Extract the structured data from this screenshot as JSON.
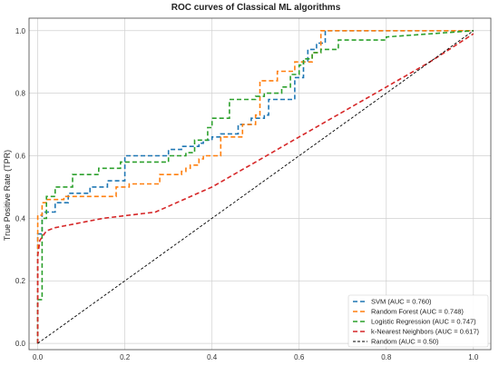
{
  "chart_data": {
    "type": "line",
    "title": "ROC curves of Classical ML algorithms",
    "xlabel": "",
    "ylabel": "True Positive Rate (TPR)",
    "xlim": [
      -0.02,
      1.04
    ],
    "ylim": [
      -0.02,
      1.04
    ],
    "xticks": [
      "0.0",
      "0.2",
      "0.4",
      "0.6",
      "0.8",
      "1.0"
    ],
    "yticks": [
      "0.0",
      "0.2",
      "0.4",
      "0.6",
      "0.8",
      "1.0"
    ],
    "grid": true,
    "legend_position": "bottom-right",
    "series": [
      {
        "name": "SVM (AUC = 0.760)",
        "color": "#1f77b4",
        "dash": "dashed",
        "x": [
          0,
          0,
          0.01,
          0.01,
          0.04,
          0.04,
          0.07,
          0.07,
          0.12,
          0.12,
          0.16,
          0.16,
          0.2,
          0.2,
          0.3,
          0.3,
          0.33,
          0.33,
          0.37,
          0.37,
          0.38,
          0.38,
          0.4,
          0.4,
          0.42,
          0.42,
          0.46,
          0.46,
          0.49,
          0.49,
          0.52,
          0.52,
          0.53,
          0.53,
          0.59,
          0.59,
          0.61,
          0.61,
          0.62,
          0.62,
          0.64,
          0.64,
          0.66,
          0.66,
          1.0
        ],
        "y": [
          0,
          0.35,
          0.35,
          0.42,
          0.42,
          0.45,
          0.45,
          0.48,
          0.48,
          0.5,
          0.5,
          0.52,
          0.52,
          0.6,
          0.6,
          0.62,
          0.62,
          0.63,
          0.63,
          0.64,
          0.64,
          0.65,
          0.65,
          0.66,
          0.66,
          0.67,
          0.67,
          0.7,
          0.7,
          0.72,
          0.72,
          0.73,
          0.73,
          0.78,
          0.78,
          0.85,
          0.85,
          0.9,
          0.9,
          0.94,
          0.94,
          0.96,
          0.96,
          1.0,
          1.0
        ]
      },
      {
        "name": "Random Forest (AUC = 0.748)",
        "color": "#ff7f0e",
        "dash": "dashed",
        "x": [
          0,
          0,
          0.01,
          0.01,
          0.02,
          0.02,
          0.06,
          0.06,
          0.18,
          0.18,
          0.21,
          0.21,
          0.28,
          0.28,
          0.33,
          0.33,
          0.34,
          0.34,
          0.35,
          0.35,
          0.37,
          0.37,
          0.38,
          0.38,
          0.42,
          0.42,
          0.47,
          0.47,
          0.5,
          0.5,
          0.51,
          0.51,
          0.55,
          0.55,
          0.59,
          0.59,
          0.63,
          0.63,
          0.65,
          0.65,
          0.72,
          0.72,
          1.0
        ],
        "y": [
          0,
          0.41,
          0.41,
          0.45,
          0.45,
          0.46,
          0.46,
          0.47,
          0.47,
          0.5,
          0.5,
          0.51,
          0.51,
          0.54,
          0.54,
          0.55,
          0.55,
          0.56,
          0.56,
          0.57,
          0.57,
          0.59,
          0.59,
          0.6,
          0.6,
          0.66,
          0.66,
          0.7,
          0.7,
          0.73,
          0.73,
          0.84,
          0.84,
          0.87,
          0.87,
          0.9,
          0.9,
          0.93,
          0.93,
          1.0,
          1.0,
          1.0,
          1.0
        ]
      },
      {
        "name": "Logistic Regression (AUC = 0.747)",
        "color": "#2ca02c",
        "dash": "dashed",
        "x": [
          0,
          0,
          0.01,
          0.01,
          0.02,
          0.02,
          0.04,
          0.04,
          0.08,
          0.08,
          0.14,
          0.14,
          0.19,
          0.19,
          0.3,
          0.3,
          0.34,
          0.34,
          0.36,
          0.36,
          0.39,
          0.39,
          0.4,
          0.4,
          0.44,
          0.44,
          0.5,
          0.5,
          0.52,
          0.52,
          0.56,
          0.56,
          0.58,
          0.58,
          0.6,
          0.6,
          0.61,
          0.61,
          0.63,
          0.63,
          0.65,
          0.65,
          0.69,
          0.69,
          0.8,
          0.8,
          1.0
        ],
        "y": [
          0,
          0.14,
          0.14,
          0.4,
          0.4,
          0.47,
          0.47,
          0.5,
          0.5,
          0.54,
          0.54,
          0.56,
          0.56,
          0.58,
          0.58,
          0.6,
          0.6,
          0.61,
          0.61,
          0.65,
          0.65,
          0.69,
          0.69,
          0.72,
          0.72,
          0.78,
          0.78,
          0.79,
          0.79,
          0.8,
          0.8,
          0.82,
          0.82,
          0.86,
          0.86,
          0.89,
          0.89,
          0.91,
          0.91,
          0.93,
          0.93,
          0.94,
          0.94,
          0.97,
          0.97,
          0.98,
          1.0
        ]
      },
      {
        "name": "k-Nearest Neighbors (AUC = 0.617)",
        "color": "#d62728",
        "dash": "dashed",
        "x": [
          0,
          0,
          0.005,
          0.02,
          0.04,
          0.15,
          0.27,
          0.4,
          0.5,
          0.6,
          0.7,
          0.8,
          0.9,
          1.0
        ],
        "y": [
          0,
          0.28,
          0.33,
          0.36,
          0.37,
          0.4,
          0.42,
          0.5,
          0.58,
          0.66,
          0.74,
          0.82,
          0.9,
          0.99
        ]
      },
      {
        "name": "Random (AUC = 0.50)",
        "color": "#000000",
        "dash": "dashed-thin",
        "x": [
          0,
          1.0
        ],
        "y": [
          0,
          1.0
        ]
      }
    ]
  }
}
